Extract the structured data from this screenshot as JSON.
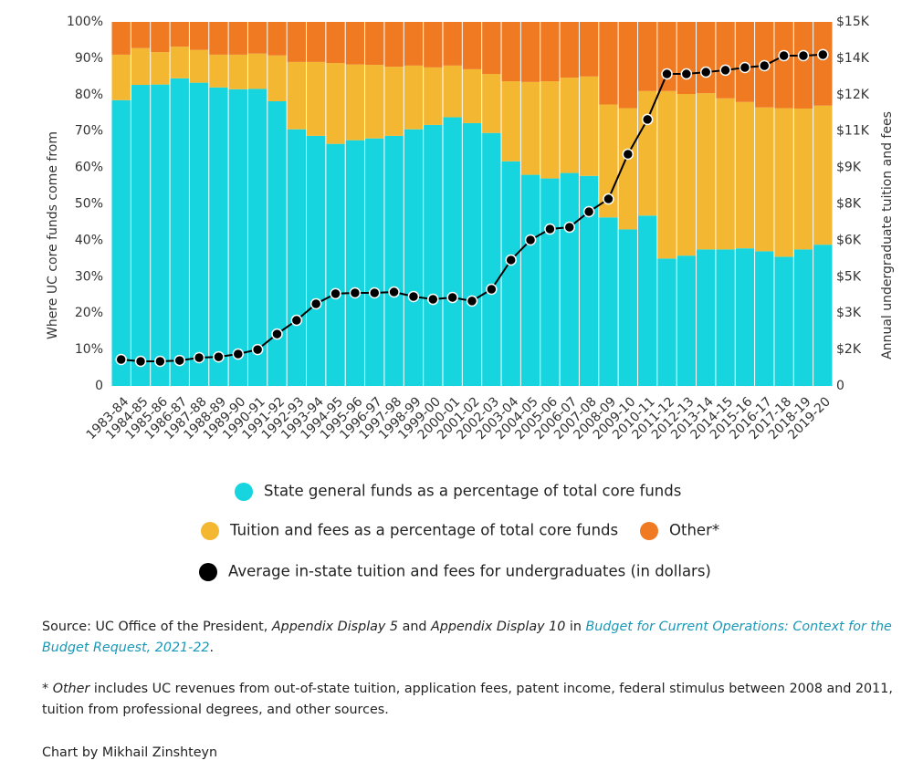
{
  "chart_data": {
    "type": "stacked-bar-line",
    "ylabel": "Where UC core funds come from",
    "y2label": "Annual undergraduate tuition and fees",
    "categories": [
      "1983-84",
      "1984-85",
      "1985-86",
      "1986-87",
      "1987-88",
      "1988-89",
      "1989-90",
      "1990-91",
      "1991-92",
      "1992-93",
      "1993-94",
      "1994-95",
      "1995-96",
      "1996-97",
      "1997-98",
      "1998-99",
      "1999-00",
      "2000-01",
      "2001-02",
      "2002-03",
      "2003-04",
      "2004-05",
      "2005-06",
      "2006-07",
      "2007-08",
      "2008-09",
      "2009-10",
      "2010-11",
      "2011-12",
      "2012-13",
      "2013-14",
      "2014-15",
      "2015-16",
      "2016-17",
      "2017-18",
      "2018-19",
      "2019-20"
    ],
    "series": [
      {
        "name": "State general funds as a percentage of total core funds",
        "color": "#16d5df",
        "values": [
          78.5,
          82.7,
          82.8,
          84.5,
          83.3,
          82,
          81.5,
          81.6,
          78.2,
          70.5,
          68.7,
          66.5,
          67.5,
          68,
          68.7,
          70.5,
          71.7,
          73.8,
          72.2,
          69.5,
          61.7,
          58,
          57,
          58.5,
          57.7,
          46.3,
          43,
          46.8,
          35,
          35.8,
          37.5,
          37.5,
          37.8,
          37,
          35.5,
          37.5,
          38.8
        ]
      },
      {
        "name": "Tuition and fees as a percentage of total core funds",
        "color": "#f4b731",
        "values": [
          12.5,
          10.1,
          8.9,
          8.7,
          9,
          9,
          9.5,
          9.7,
          12.6,
          18.5,
          20.3,
          22.2,
          20.8,
          20.2,
          19,
          17.5,
          15.8,
          14.2,
          14.8,
          16.2,
          22,
          25.5,
          26.7,
          26.2,
          27.3,
          31,
          33.3,
          34.2,
          46,
          44.4,
          42.9,
          41.5,
          40.2,
          39.5,
          40.8,
          38.7,
          38.2
        ]
      },
      {
        "name": "Other*",
        "color": "#ef7a22",
        "values": [
          9,
          7.2,
          8.3,
          6.8,
          7.7,
          9,
          9,
          8.7,
          9.2,
          11,
          11,
          11.3,
          11.7,
          11.8,
          12.3,
          12,
          12.5,
          12,
          13,
          14.3,
          16.3,
          16.5,
          16.3,
          15.3,
          15,
          22.7,
          23.7,
          19,
          19,
          19.8,
          19.6,
          21,
          22,
          23.5,
          23.7,
          23.8,
          23
        ]
      },
      {
        "name": "Average in-state tuition and fees for undergraduates (in dollars)",
        "color": "#000000",
        "axis": "y2",
        "values": [
          1090,
          1015,
          1015,
          1050,
          1165,
          1200,
          1315,
          1500,
          2140,
          2705,
          3385,
          3800,
          3835,
          3835,
          3870,
          3685,
          3570,
          3645,
          3500,
          3985,
          5190,
          6015,
          6465,
          6540,
          7180,
          7705,
          9550,
          10980,
          12855,
          12855,
          12930,
          13010,
          13120,
          13195,
          13610,
          13610,
          13650
        ]
      }
    ],
    "ylim": [
      0,
      100
    ],
    "yticks": [
      0,
      {
        "value": 10,
        "label": "10%"
      },
      {
        "value": 20,
        "label": "20%"
      },
      {
        "value": 30,
        "label": "30%"
      },
      {
        "value": 40,
        "label": "40%"
      },
      {
        "value": 50,
        "label": "50%"
      },
      {
        "value": 60,
        "label": "60%"
      },
      {
        "value": 70,
        "label": "70%"
      },
      {
        "value": 80,
        "label": "80%"
      },
      {
        "value": 90,
        "label": "90%"
      },
      {
        "value": 100,
        "label": "100%"
      }
    ],
    "y2lim": [
      0,
      15000
    ],
    "y2ticks": [
      0,
      {
        "value": 1500,
        "label": "$2K"
      },
      {
        "value": 3000,
        "label": "$3K"
      },
      {
        "value": 4500,
        "label": "$5K"
      },
      {
        "value": 6000,
        "label": "$6K"
      },
      {
        "value": 7500,
        "label": "$8K"
      },
      {
        "value": 9000,
        "label": "$9K"
      },
      {
        "value": 10500,
        "label": "$11K"
      },
      {
        "value": 12000,
        "label": "$12K"
      },
      {
        "value": 13500,
        "label": "$14K"
      },
      {
        "value": 15000,
        "label": "$15K"
      }
    ]
  },
  "notes": {
    "source": [
      "Source: UC Office of the President, ",
      "Appendix Display 5",
      " and ",
      "Appendix Display 10",
      " in ",
      "Budget for Current Operations: Context for the Budget Request, 2021-22",
      "."
    ],
    "footnote": [
      "* Other",
      " includes UC revenues from out-of-state tuition, application fees, patent income, federal stimulus between 2008 and 2011, tuition from professional degrees, and other sources."
    ],
    "credit": "Chart by Mikhail Zinshteyn"
  }
}
